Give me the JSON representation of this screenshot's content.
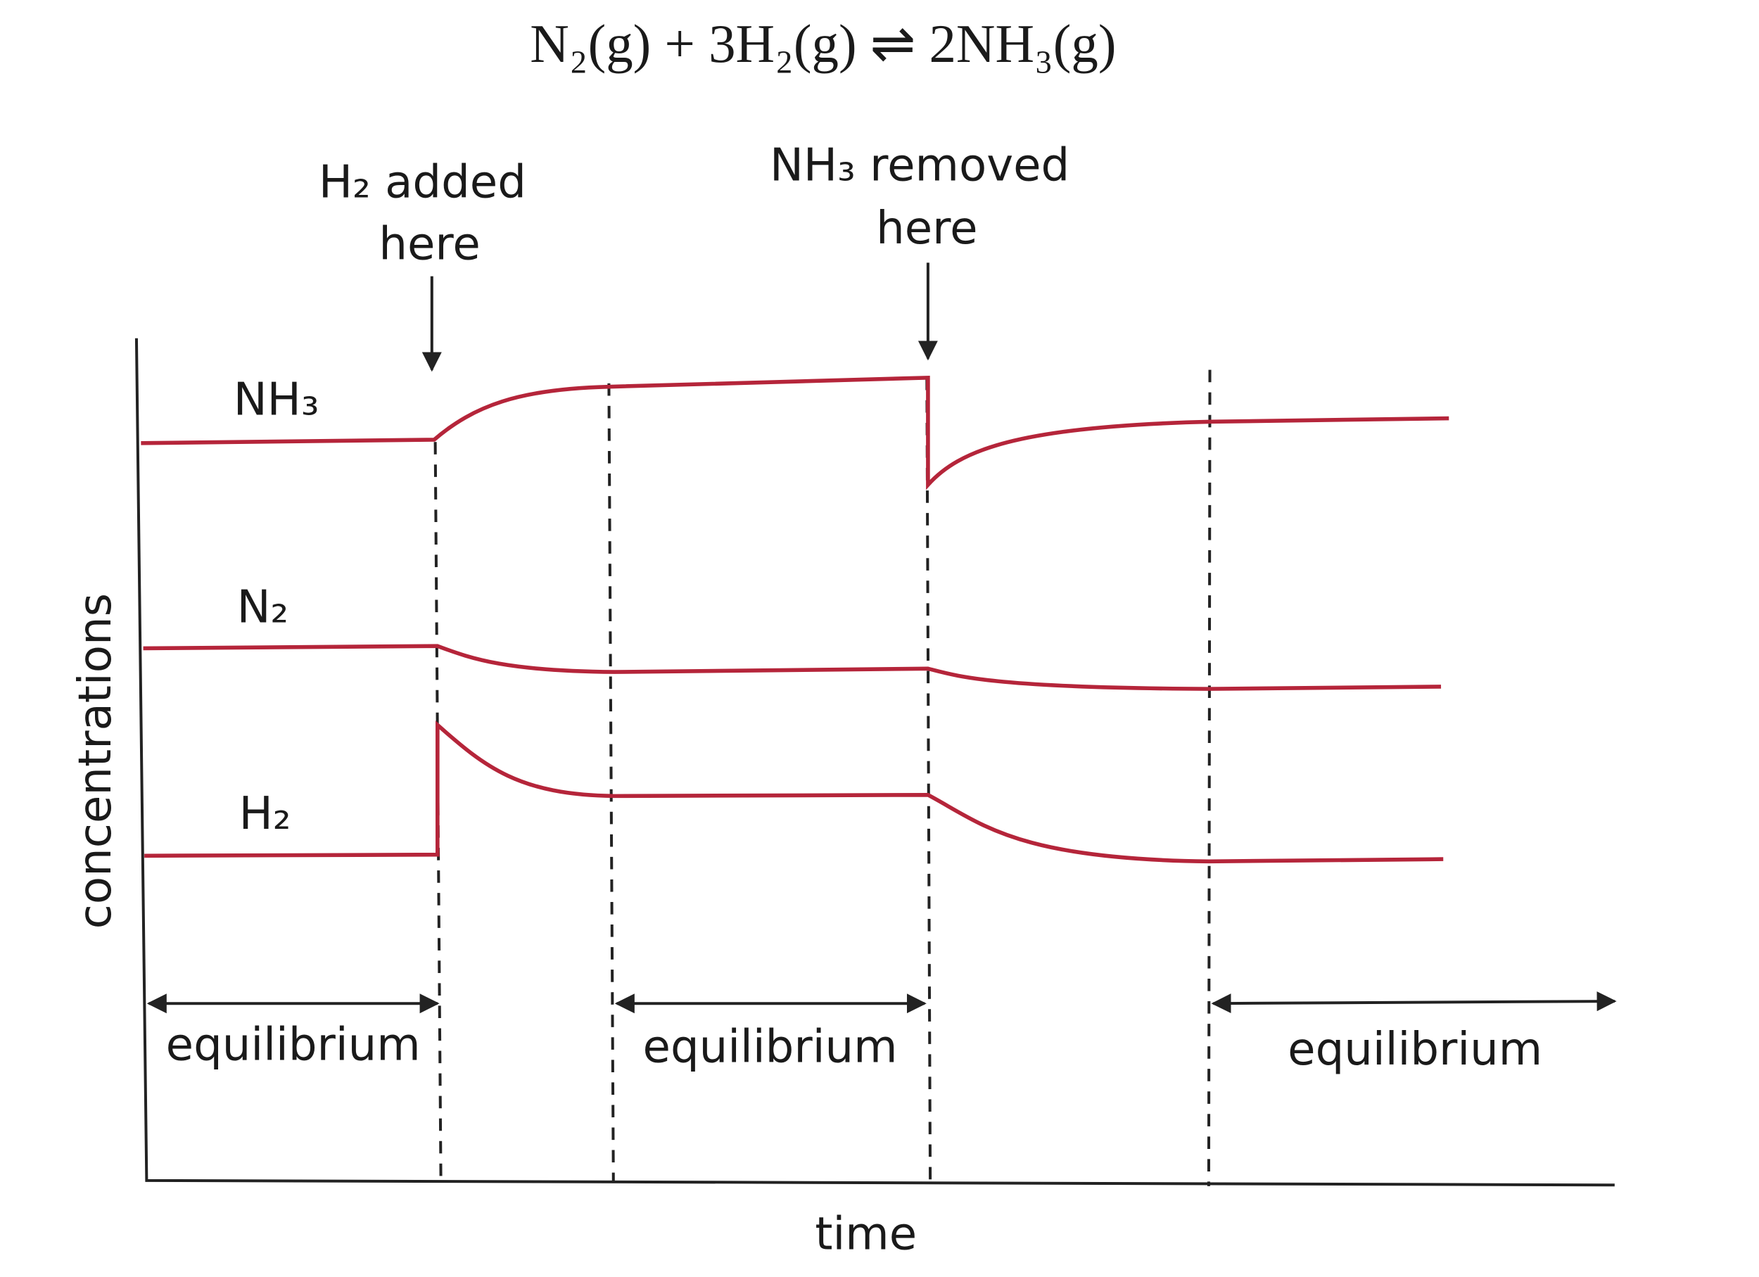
{
  "equation": "N₂(g) + 3H₂(g) ⇌ 2NH₃(g)",
  "axes": {
    "y_label": "concentrations",
    "x_label": "time"
  },
  "annotations": [
    {
      "lines": [
        "H₂ added",
        "here"
      ]
    },
    {
      "lines": [
        "NH₃ removed",
        "here"
      ]
    }
  ],
  "curves": [
    {
      "label": "NH₃"
    },
    {
      "label": "N₂"
    },
    {
      "label": "H₂"
    }
  ],
  "periods": [
    "equilibrium",
    "equilibrium",
    "equilibrium"
  ]
}
